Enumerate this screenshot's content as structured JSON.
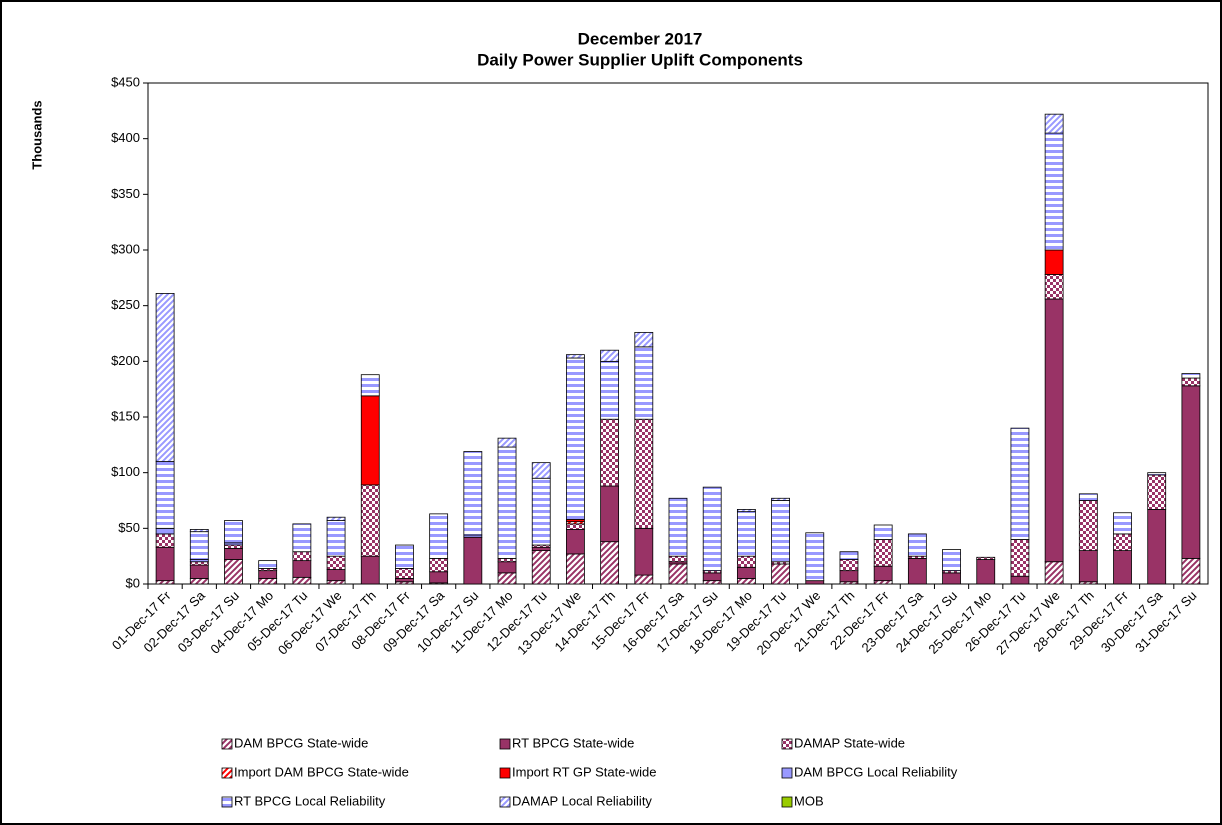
{
  "chart_data": {
    "type": "stacked-bar",
    "title": [
      "December 2017",
      "Daily Power Supplier Uplift Components"
    ],
    "y_label": "Thousands",
    "categories": [
      "01-Dec-17 Fr",
      "02-Dec-17 Sa",
      "03-Dec-17 Su",
      "04-Dec-17 Mo",
      "05-Dec-17 Tu",
      "06-Dec-17 We",
      "07-Dec-17 Th",
      "08-Dec-17 Fr",
      "09-Dec-17 Sa",
      "10-Dec-17 Su",
      "11-Dec-17 Mo",
      "12-Dec-17 Tu",
      "13-Dec-17 We",
      "14-Dec-17 Th",
      "15-Dec-17 Fr",
      "16-Dec-17 Sa",
      "17-Dec-17 Su",
      "18-Dec-17 Mo",
      "19-Dec-17 Tu",
      "20-Dec-17 We",
      "21-Dec-17 Th",
      "22-Dec-17 Fr",
      "23-Dec-17 Sa",
      "24-Dec-17 Su",
      "25-Dec-17 Mo",
      "26-Dec-17 Tu",
      "27-Dec-17 We",
      "28-Dec-17 Th",
      "29-Dec-17 Fr",
      "30-Dec-17 Sa",
      "31-Dec-17 Su"
    ],
    "series": [
      {
        "name": "DAM BPCG State-wide",
        "color": "#993366",
        "pattern": "diagonal",
        "values": [
          3,
          5,
          22,
          5,
          6,
          3,
          0,
          2,
          1,
          0,
          10,
          30,
          27,
          38,
          8,
          18,
          3,
          5,
          18,
          0,
          2,
          3,
          0,
          0,
          0,
          0,
          20,
          2,
          0,
          0,
          23
        ]
      },
      {
        "name": "RT BPCG State-wide",
        "color": "#993366",
        "pattern": "solid",
        "values": [
          30,
          12,
          10,
          7,
          15,
          10,
          25,
          3,
          10,
          42,
          10,
          3,
          22,
          50,
          42,
          2,
          7,
          10,
          0,
          3,
          10,
          13,
          23,
          10,
          22,
          7,
          236,
          28,
          30,
          67,
          155
        ]
      },
      {
        "name": "DAMAP State-wide",
        "color": "#993366",
        "pattern": "checker",
        "values": [
          12,
          3,
          3,
          2,
          8,
          12,
          64,
          9,
          12,
          0,
          3,
          2,
          5,
          60,
          98,
          5,
          2,
          10,
          2,
          0,
          10,
          24,
          2,
          2,
          2,
          33,
          22,
          45,
          15,
          31,
          7
        ]
      },
      {
        "name": "Import DAM BPCG State-wide",
        "color": "#ff0000",
        "pattern": "diagonal",
        "values": [
          0,
          0,
          0,
          0,
          0,
          0,
          0,
          0,
          0,
          0,
          0,
          0,
          2,
          0,
          0,
          0,
          0,
          0,
          0,
          0,
          0,
          0,
          0,
          0,
          0,
          0,
          0,
          0,
          0,
          0,
          0
        ]
      },
      {
        "name": "Import RT GP State-wide",
        "color": "#ff0000",
        "pattern": "solid",
        "values": [
          0,
          0,
          0,
          0,
          0,
          0,
          80,
          0,
          0,
          0,
          0,
          0,
          2,
          0,
          0,
          0,
          0,
          0,
          0,
          0,
          0,
          0,
          0,
          0,
          0,
          0,
          22,
          0,
          0,
          0,
          0
        ]
      },
      {
        "name": "DAM BPCG Local Reliability",
        "color": "#9999ff",
        "pattern": "solid",
        "values": [
          5,
          2,
          2,
          0,
          0,
          0,
          0,
          0,
          0,
          2,
          0,
          0,
          0,
          0,
          0,
          0,
          0,
          0,
          0,
          0,
          0,
          0,
          0,
          0,
          0,
          0,
          0,
          0,
          0,
          0,
          0
        ]
      },
      {
        "name": "RT BPCG Local Reliability",
        "color": "#9999ff",
        "pattern": "horizontal",
        "values": [
          60,
          25,
          20,
          7,
          25,
          32,
          19,
          21,
          40,
          75,
          100,
          60,
          145,
          52,
          65,
          52,
          75,
          40,
          55,
          43,
          7,
          13,
          20,
          19,
          0,
          100,
          105,
          6,
          19,
          2,
          4
        ]
      },
      {
        "name": "DAMAP Local Reliability",
        "color": "#9999ff",
        "pattern": "diagonal",
        "values": [
          151,
          2,
          0,
          0,
          0,
          3,
          0,
          0,
          0,
          0,
          8,
          14,
          3,
          10,
          13,
          0,
          0,
          2,
          2,
          0,
          0,
          0,
          0,
          0,
          0,
          0,
          17,
          0,
          0,
          0,
          0
        ]
      },
      {
        "name": "MOB",
        "color": "#99cc00",
        "pattern": "solid",
        "values": [
          0,
          0,
          0,
          0,
          0,
          0,
          0,
          0,
          0,
          0,
          0,
          0,
          0,
          0,
          0,
          0,
          0,
          0,
          0,
          0,
          0,
          0,
          0,
          0,
          0,
          0,
          0,
          0,
          0,
          0,
          0
        ]
      }
    ],
    "ylim": [
      0,
      450
    ],
    "yticks": [
      {
        "value": 0,
        "label": "$0"
      },
      {
        "value": 50,
        "label": "$50"
      },
      {
        "value": 100,
        "label": "$100"
      },
      {
        "value": 150,
        "label": "$150"
      },
      {
        "value": 200,
        "label": "$200"
      },
      {
        "value": 250,
        "label": "$250"
      },
      {
        "value": 300,
        "label": "$300"
      },
      {
        "value": 350,
        "label": "$350"
      },
      {
        "value": 400,
        "label": "$400"
      },
      {
        "value": 450,
        "label": "$450"
      }
    ],
    "grid": false,
    "legend": "bottom"
  }
}
